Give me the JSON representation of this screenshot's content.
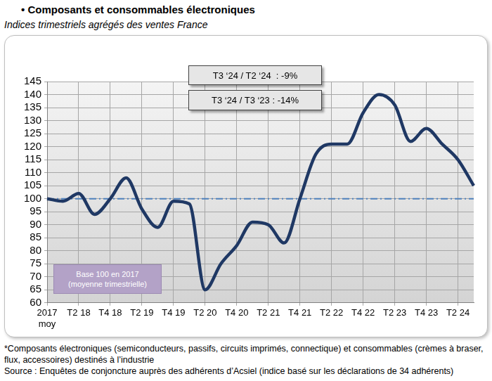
{
  "chart_data": {
    "type": "line",
    "title": "• Composants et consommables électroniques",
    "subtitle": "Indices trimestriels agrégés des ventes France",
    "annotations": [
      "T3 ‘24 / T2 ‘24  : -9%",
      "T3 ‘24 / T3 ‘23 : -14%",
      "Base 100 en 2017\n(moyenne trimestrielle)"
    ],
    "footnote": "*Composants électroniques (semiconducteurs, passifs, circuits imprimés, connectique) et consommables (crèmes à braser, flux, accessoires) destinés à l’industrie",
    "source": "Source : Enquêtes de conjoncture auprès des adhérents d’Acsiel (indice basé sur les déclarations de 34 adhérents)",
    "categories": [
      "2017\nmoy",
      null,
      "T2 18",
      null,
      "T4 18",
      null,
      "T2 19",
      null,
      "T4 19",
      null,
      "T2 20",
      null,
      "T4 20",
      null,
      "T2 21",
      null,
      "T4 21",
      null,
      "T2 22",
      null,
      "T4 22",
      null,
      "T2 23",
      null,
      "T4 23",
      null,
      "T2 24",
      null
    ],
    "series": [
      {
        "color": "#1f3864",
        "line_style": "solid",
        "values": [
          100,
          99,
          102,
          94,
          100,
          108,
          96,
          89,
          99,
          98,
          65,
          75,
          82,
          91,
          90,
          83,
          100,
          117,
          121,
          121,
          133,
          140,
          136,
          122,
          127,
          121,
          115,
          105
        ]
      },
      {
        "color": "#4f81bd",
        "line_style": "dashdot",
        "values": [
          100,
          100,
          100,
          100,
          100,
          100,
          100,
          100,
          100,
          100,
          100,
          100,
          100,
          100,
          100,
          100,
          100,
          100,
          100,
          100,
          100,
          100,
          100,
          100,
          100,
          100,
          100,
          100
        ]
      }
    ],
    "ylim": [
      60,
      145
    ],
    "yticks": [
      60,
      65,
      70,
      75,
      80,
      85,
      90,
      95,
      100,
      105,
      110,
      115,
      120,
      125,
      130,
      135,
      140,
      145
    ],
    "grid": true
  }
}
